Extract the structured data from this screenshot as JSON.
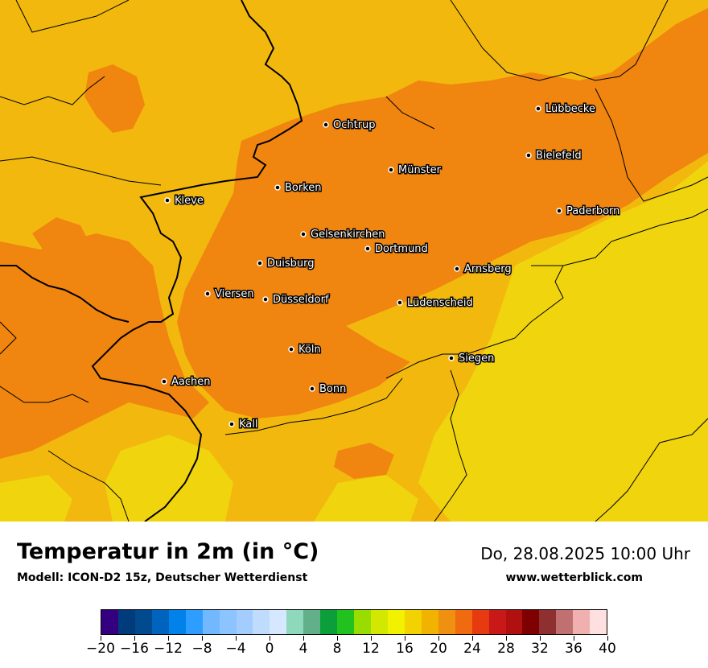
{
  "title": "Temperatur in 2m (in °C)",
  "subtitle": "Modell: ICON-D2 15z, Deutscher Wetterdienst",
  "datetime": "Do, 28.08.2025 10:00 Uhr",
  "website": "www.wetterblick.com",
  "map_colors": {
    "base": "#f2b80e",
    "warm": "#f08510",
    "cool": "#f0d40e",
    "border": "#000000"
  },
  "cities": [
    {
      "name": "Lübbecke"
    },
    {
      "name": "Ochtrup"
    },
    {
      "name": "Bielefeld"
    },
    {
      "name": "Münster"
    },
    {
      "name": "Kleve"
    },
    {
      "name": "Borken"
    },
    {
      "name": "Paderborn"
    },
    {
      "name": "Gelsenkirchen"
    },
    {
      "name": "Dortmund"
    },
    {
      "name": "Duisburg"
    },
    {
      "name": "Arnsberg"
    },
    {
      "name": "Viersen"
    },
    {
      "name": "Düsseldorf"
    },
    {
      "name": "Lüdenscheid"
    },
    {
      "name": "Köln"
    },
    {
      "name": "Siegen"
    },
    {
      "name": "Aachen"
    },
    {
      "name": "Bonn"
    },
    {
      "name": "Kall"
    }
  ],
  "colorbar": {
    "colors": [
      "#35007f",
      "#003c7c",
      "#004a8d",
      "#0064bf",
      "#0082ea",
      "#2d9dff",
      "#72b8ff",
      "#8cc4ff",
      "#a3cdff",
      "#bfdcff",
      "#d6e8ff",
      "#8ed8bc",
      "#62b08a",
      "#0d9e3c",
      "#21c11e",
      "#98dc00",
      "#d2e800",
      "#f2f200",
      "#f2d200",
      "#f2b200",
      "#f09010",
      "#f06a10",
      "#e83a10",
      "#c81818",
      "#b01010",
      "#7e0000",
      "#8e3030",
      "#c07070",
      "#f0b0b0",
      "#ffe0e0"
    ],
    "tick_labels": [
      "−20",
      "−16",
      "−12",
      "−8",
      "−4",
      "0",
      "4",
      "8",
      "12",
      "16",
      "20",
      "24",
      "28",
      "32",
      "36",
      "40"
    ]
  }
}
